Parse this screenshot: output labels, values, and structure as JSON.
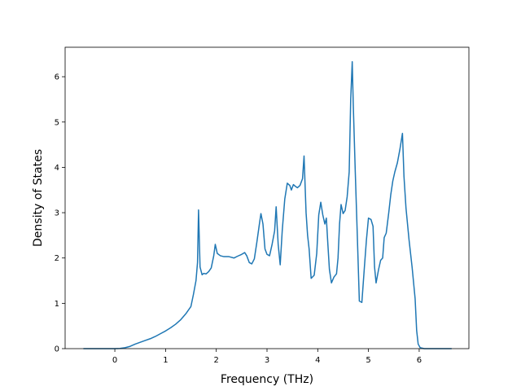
{
  "chart_data": {
    "type": "line",
    "xlabel": "Frequency (THz)",
    "ylabel": "Density of States",
    "xlim": [
      -0.98,
      6.98
    ],
    "ylim": [
      0,
      6.65
    ],
    "xticks": [
      0,
      1,
      2,
      3,
      4,
      5,
      6
    ],
    "yticks": [
      0,
      1,
      2,
      3,
      4,
      5,
      6
    ],
    "grid": false,
    "legend": "none",
    "series": [
      {
        "color": "#1f77b4",
        "points": [
          [
            -0.62,
            0.0
          ],
          [
            -0.3,
            0.0
          ],
          [
            0.0,
            0.0
          ],
          [
            0.1,
            0.005
          ],
          [
            0.2,
            0.02
          ],
          [
            0.3,
            0.05
          ],
          [
            0.4,
            0.1
          ],
          [
            0.5,
            0.14
          ],
          [
            0.6,
            0.18
          ],
          [
            0.7,
            0.22
          ],
          [
            0.8,
            0.27
          ],
          [
            0.9,
            0.33
          ],
          [
            1.0,
            0.39
          ],
          [
            1.1,
            0.46
          ],
          [
            1.2,
            0.54
          ],
          [
            1.3,
            0.64
          ],
          [
            1.4,
            0.77
          ],
          [
            1.5,
            0.93
          ],
          [
            1.55,
            1.2
          ],
          [
            1.6,
            1.5
          ],
          [
            1.63,
            1.9
          ],
          [
            1.65,
            3.06
          ],
          [
            1.68,
            1.8
          ],
          [
            1.72,
            1.63
          ],
          [
            1.75,
            1.66
          ],
          [
            1.8,
            1.65
          ],
          [
            1.85,
            1.7
          ],
          [
            1.9,
            1.78
          ],
          [
            1.95,
            2.05
          ],
          [
            1.98,
            2.3
          ],
          [
            2.02,
            2.1
          ],
          [
            2.08,
            2.05
          ],
          [
            2.15,
            2.03
          ],
          [
            2.25,
            2.03
          ],
          [
            2.35,
            2.0
          ],
          [
            2.42,
            2.04
          ],
          [
            2.5,
            2.08
          ],
          [
            2.56,
            2.12
          ],
          [
            2.6,
            2.05
          ],
          [
            2.65,
            1.9
          ],
          [
            2.7,
            1.87
          ],
          [
            2.75,
            1.98
          ],
          [
            2.8,
            2.35
          ],
          [
            2.85,
            2.75
          ],
          [
            2.88,
            2.98
          ],
          [
            2.92,
            2.75
          ],
          [
            2.96,
            2.2
          ],
          [
            3.0,
            2.08
          ],
          [
            3.05,
            2.05
          ],
          [
            3.1,
            2.3
          ],
          [
            3.15,
            2.6
          ],
          [
            3.18,
            3.13
          ],
          [
            3.22,
            2.3
          ],
          [
            3.26,
            1.85
          ],
          [
            3.3,
            2.6
          ],
          [
            3.35,
            3.3
          ],
          [
            3.4,
            3.65
          ],
          [
            3.45,
            3.6
          ],
          [
            3.48,
            3.5
          ],
          [
            3.52,
            3.62
          ],
          [
            3.56,
            3.58
          ],
          [
            3.6,
            3.55
          ],
          [
            3.65,
            3.6
          ],
          [
            3.7,
            3.75
          ],
          [
            3.73,
            4.25
          ],
          [
            3.77,
            3.0
          ],
          [
            3.8,
            2.5
          ],
          [
            3.83,
            2.2
          ],
          [
            3.87,
            1.55
          ],
          [
            3.93,
            1.62
          ],
          [
            3.98,
            2.1
          ],
          [
            4.02,
            2.95
          ],
          [
            4.06,
            3.23
          ],
          [
            4.1,
            2.95
          ],
          [
            4.14,
            2.75
          ],
          [
            4.17,
            2.88
          ],
          [
            4.2,
            2.3
          ],
          [
            4.23,
            1.75
          ],
          [
            4.27,
            1.45
          ],
          [
            4.32,
            1.58
          ],
          [
            4.37,
            1.65
          ],
          [
            4.4,
            2.0
          ],
          [
            4.43,
            2.75
          ],
          [
            4.46,
            3.18
          ],
          [
            4.5,
            2.98
          ],
          [
            4.54,
            3.05
          ],
          [
            4.58,
            3.35
          ],
          [
            4.62,
            3.9
          ],
          [
            4.65,
            5.5
          ],
          [
            4.68,
            6.33
          ],
          [
            4.7,
            5.4
          ],
          [
            4.74,
            3.9
          ],
          [
            4.78,
            2.5
          ],
          [
            4.82,
            1.05
          ],
          [
            4.87,
            1.02
          ],
          [
            4.92,
            1.8
          ],
          [
            4.96,
            2.4
          ],
          [
            5.0,
            2.88
          ],
          [
            5.05,
            2.85
          ],
          [
            5.09,
            2.7
          ],
          [
            5.12,
            1.8
          ],
          [
            5.15,
            1.45
          ],
          [
            5.2,
            1.75
          ],
          [
            5.24,
            1.95
          ],
          [
            5.28,
            2.0
          ],
          [
            5.31,
            2.45
          ],
          [
            5.35,
            2.55
          ],
          [
            5.4,
            3.0
          ],
          [
            5.44,
            3.4
          ],
          [
            5.48,
            3.7
          ],
          [
            5.52,
            3.9
          ],
          [
            5.57,
            4.1
          ],
          [
            5.62,
            4.4
          ],
          [
            5.67,
            4.75
          ],
          [
            5.7,
            3.8
          ],
          [
            5.74,
            3.1
          ],
          [
            5.8,
            2.4
          ],
          [
            5.86,
            1.8
          ],
          [
            5.92,
            1.1
          ],
          [
            5.95,
            0.4
          ],
          [
            5.98,
            0.1
          ],
          [
            6.02,
            0.02
          ],
          [
            6.1,
            0.0
          ],
          [
            6.3,
            0.0
          ],
          [
            6.64,
            0.0
          ]
        ]
      }
    ]
  }
}
